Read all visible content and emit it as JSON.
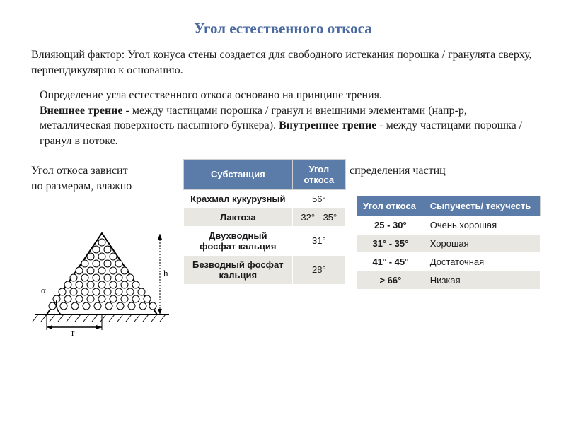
{
  "title": "Угол естественного откоса",
  "para1": "Влияющий фактор: Угол конуса стены создается для свободного истекания порошка / гранулята сверху, перпендикулярно к основанию.",
  "para2_a": "Определение угла естественного откоса  основано на принципе трения.",
  "para2_bold1": "Внешнее трение",
  "para2_b": " - между частицами порошка / гранул и внешними элементами (напр-р, металлическая поверхность насыпного бункера). ",
  "para2_bold2": "Внутреннее трение",
  "para2_c": " - между частицами порошка / гранул в потоке.",
  "over_left": "Угол откоса  зависит",
  "over_right": "спределения частиц",
  "over_line2": "по размерам, влажно",
  "diagram_labels": {
    "alpha": "α",
    "h": "h",
    "r": "r"
  },
  "substance_table": {
    "headers": [
      "Субстанция",
      "Угол откоса"
    ],
    "rows": [
      {
        "name": "Крахмал кукурузный",
        "angle": "56°",
        "alt": false
      },
      {
        "name": "Лактоза",
        "angle": "32° - 35°",
        "alt": true
      },
      {
        "name": "Двухводный фосфат кальция",
        "angle": "31°",
        "alt": false
      },
      {
        "name": "Безводный фосфат кальция",
        "angle": "28°",
        "alt": true
      }
    ]
  },
  "flow_table": {
    "headers": [
      "Угол откоса",
      "Сыпучесть/ текучесть"
    ],
    "rows": [
      {
        "angle": "25 - 30°",
        "flow": "Очень хорошая",
        "alt": false
      },
      {
        "angle": "31° - 35°",
        "flow": "Хорошая",
        "alt": true
      },
      {
        "angle": "41° - 45°",
        "flow": "Достаточная",
        "alt": false
      },
      {
        "angle": "> 66°",
        "flow": "Низкая",
        "alt": true
      }
    ]
  },
  "colors": {
    "title": "#4a69a0",
    "table_header_bg": "#5b7ca8",
    "alt_row_bg": "#e9e7e2"
  }
}
